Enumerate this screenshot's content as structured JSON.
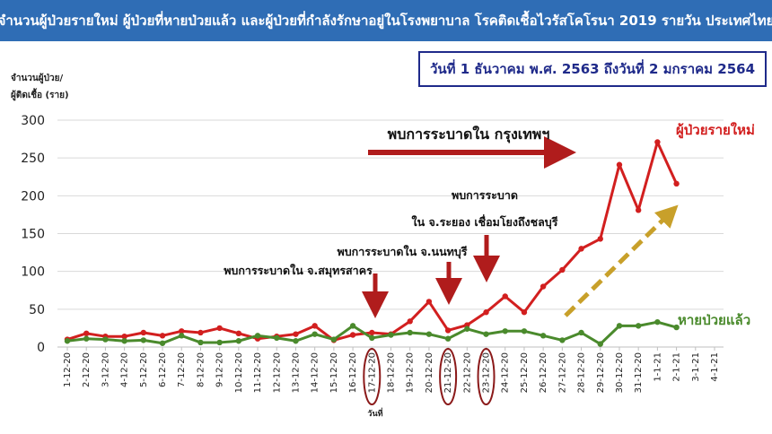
{
  "title": "จำนวนผู้ป่วยรายใหม่ ผู้ป่วยที่หายป่วยแล้ว และผู้ป่วยที่กำลังรักษาอยู่ในโรงพยาบาล โรคติดเชื้อไวรัสโคโรนา 2019 รายวัน ประเทศไทย",
  "date_range": "วันที่ 1 ธันวาคม พ.ศ. 2563 ถึงวันที่ 2 มกราคม 2564",
  "annotations": {
    "bangkok": "พบการระบาดใน กรุงเทพฯ",
    "rayong_line1": "พบการระบาด",
    "rayong_line2": "ใน จ.ระยอง เชื่อมโยงถึงชลบุรี",
    "nonthaburi": "พบการระบาดใน จ.นนทบุรี",
    "samut_sakhon": "พบการระบาดใน จ.สมุทรสาคร"
  },
  "colors": {
    "new_cases": "#d21f1f",
    "recovered": "#4a8a2c",
    "trend_arrow": "#c8a02a",
    "annotation_arrow": "#b01c1c",
    "title_bg": "#2f6db5",
    "circle": "#8b1a1a"
  },
  "chart_data": {
    "type": "line",
    "ylabel_line1": "จำนวนผู้ป่วย/",
    "ylabel_line2": "ผู้ติดเชื้อ (ราย)",
    "xlabel": "วันที่",
    "ylim": [
      0,
      300
    ],
    "yticks": [
      0,
      50,
      100,
      150,
      200,
      250,
      300
    ],
    "grid": true,
    "categories": [
      "1-12-20",
      "2-12-20",
      "3-12-20",
      "4-12-20",
      "5-12-20",
      "6-12-20",
      "7-12-20",
      "8-12-20",
      "9-12-20",
      "10-12-20",
      "11-12-20",
      "12-12-20",
      "13-12-20",
      "14-12-20",
      "15-12-20",
      "16-12-20",
      "17-12-20",
      "18-12-20",
      "19-12-20",
      "20-12-20",
      "21-12-20",
      "22-12-20",
      "23-12-20",
      "24-12-20",
      "25-12-20",
      "26-12-20",
      "27-12-20",
      "28-12-20",
      "29-12-20",
      "30-12-20",
      "31-12-20",
      "1-1-21",
      "2-1-21",
      "3-1-21",
      "4-1-21"
    ],
    "highlighted_dates": [
      "17-12-20",
      "21-12-20",
      "23-12-20"
    ],
    "series": [
      {
        "name": "ผู้ป่วยรายใหม่",
        "values": [
          10,
          18,
          14,
          14,
          19,
          15,
          21,
          19,
          25,
          18,
          11,
          14,
          17,
          28,
          9,
          16,
          19,
          17,
          34,
          60,
          22,
          29,
          46,
          67,
          46,
          80,
          102,
          130,
          143,
          241,
          181,
          271,
          216,
          null,
          null
        ]
      },
      {
        "name": "หายป่วยแล้ว",
        "values": [
          8,
          11,
          10,
          8,
          9,
          5,
          15,
          6,
          6,
          8,
          15,
          12,
          8,
          17,
          10,
          28,
          12,
          16,
          19,
          17,
          11,
          24,
          17,
          21,
          21,
          15,
          9,
          19,
          4,
          28,
          28,
          33,
          26,
          null,
          null
        ]
      }
    ]
  }
}
